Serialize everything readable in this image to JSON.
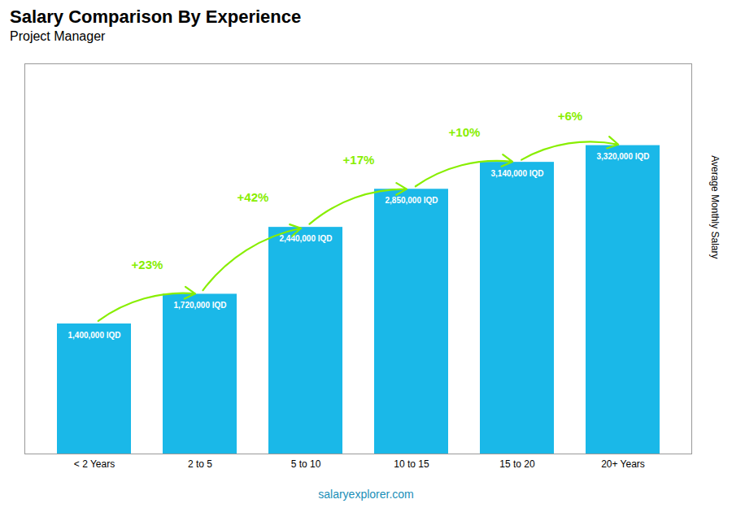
{
  "chart_data": {
    "type": "bar",
    "title": "Salary Comparison By Experience",
    "subtitle": "Project Manager",
    "categories": [
      "< 2 Years",
      "2 to 5",
      "5 to 10",
      "10 to 15",
      "15 to 20",
      "20+ Years"
    ],
    "values": [
      1400000,
      1720000,
      2440000,
      2850000,
      3140000,
      3320000
    ],
    "value_labels": [
      "1,400,000 IQD",
      "1,720,000 IQD",
      "2,440,000 IQD",
      "2,850,000 IQD",
      "3,140,000 IQD",
      "3,320,000 IQD"
    ],
    "data_labels": true,
    "color": "#1ab8e8",
    "ylim": [
      0,
      4200000
    ],
    "tick_labels": "x",
    "grid": false,
    "ylabel": "Average Monthly Salary",
    "annotations": {
      "labels": [
        "+23%",
        "+42%",
        "+17%",
        "+10%",
        "+6%"
      ],
      "color": "#88ee00"
    },
    "caption": "salaryexplorer.com"
  }
}
